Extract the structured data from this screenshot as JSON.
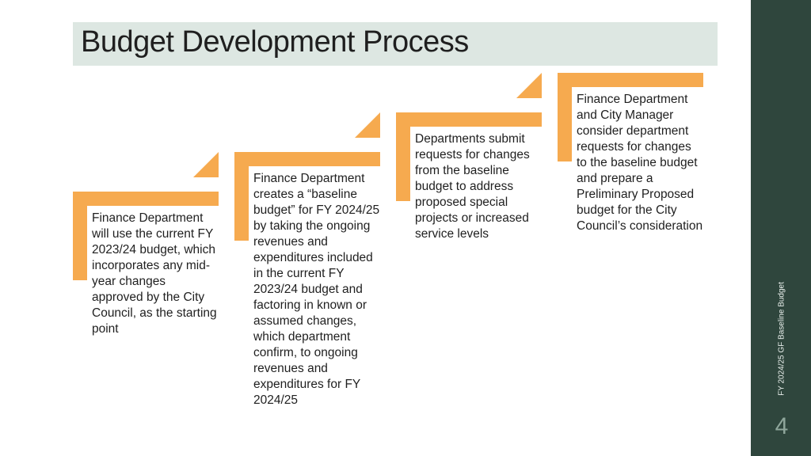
{
  "title": "Budget Development Process",
  "side_label": "FY 2024/25 GF Baseline Budget",
  "page_number": "4",
  "colors": {
    "accent": "#f6aa4f",
    "title_bg": "#dde7e2",
    "side_panel": "#2f463d"
  },
  "steps": [
    {
      "text": "Finance Department will use the current FY 2023/24 budget, which incorporates any mid-year changes approved by the City Council, as the starting point"
    },
    {
      "text": "Finance Department creates a “baseline budget” for FY 2024/25 by taking the ongoing revenues and expenditures included in the current FY 2023/24 budget and factoring in known or assumed changes, which department confirm, to ongoing revenues and expenditures for FY 2024/25"
    },
    {
      "text": "Departments submit requests for changes from the baseline budget to address proposed special projects or increased service levels"
    },
    {
      "text": "Finance Department and City Manager consider department requests for changes to the baseline budget and prepare a Preliminary Proposed budget for the City Council’s consideration"
    }
  ]
}
